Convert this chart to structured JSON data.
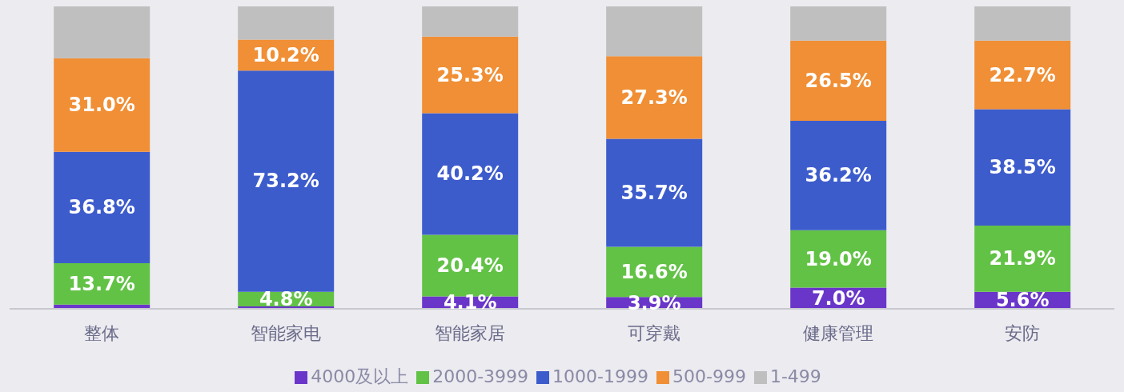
{
  "chart_data": {
    "type": "bar",
    "stacked": true,
    "categories": [
      "整体",
      "智能家电",
      "智能家居",
      "可穿戴",
      "健康管理",
      "安防"
    ],
    "series": [
      {
        "name": "4000及以上",
        "color": "#6a36c9",
        "values": [
          1.4,
          0.8,
          4.1,
          3.9,
          7.0,
          5.6
        ],
        "value_labels": [
          null,
          null,
          "4.1%",
          "3.9%",
          "7.0%",
          "5.6%"
        ]
      },
      {
        "name": "2000-3999",
        "color": "#62c246",
        "values": [
          13.7,
          4.8,
          20.4,
          16.6,
          19.0,
          21.9
        ],
        "value_labels": [
          "13.7%",
          "4.8%",
          "20.4%",
          "16.6%",
          "19.0%",
          "21.9%"
        ]
      },
      {
        "name": "1000-1999",
        "color": "#3d5ccc",
        "values": [
          36.8,
          73.2,
          40.2,
          35.7,
          36.2,
          38.5
        ],
        "value_labels": [
          "36.8%",
          "73.2%",
          "40.2%",
          "35.7%",
          "36.2%",
          "38.5%"
        ]
      },
      {
        "name": "500-999",
        "color": "#f08f35",
        "values": [
          31.0,
          10.2,
          25.3,
          27.3,
          26.5,
          22.7
        ],
        "value_labels": [
          "31.0%",
          "10.2%",
          "25.3%",
          "27.3%",
          "26.5%",
          "22.7%"
        ]
      },
      {
        "name": "1-499",
        "color": "#bfbfbf",
        "values": [
          17.1,
          11.0,
          10.0,
          16.5,
          11.3,
          11.3
        ],
        "value_labels": [
          null,
          null,
          null,
          null,
          null,
          null
        ]
      }
    ],
    "ylim": [
      0,
      100
    ],
    "tick_labels": "x",
    "grid": false,
    "legend": "bottom"
  }
}
